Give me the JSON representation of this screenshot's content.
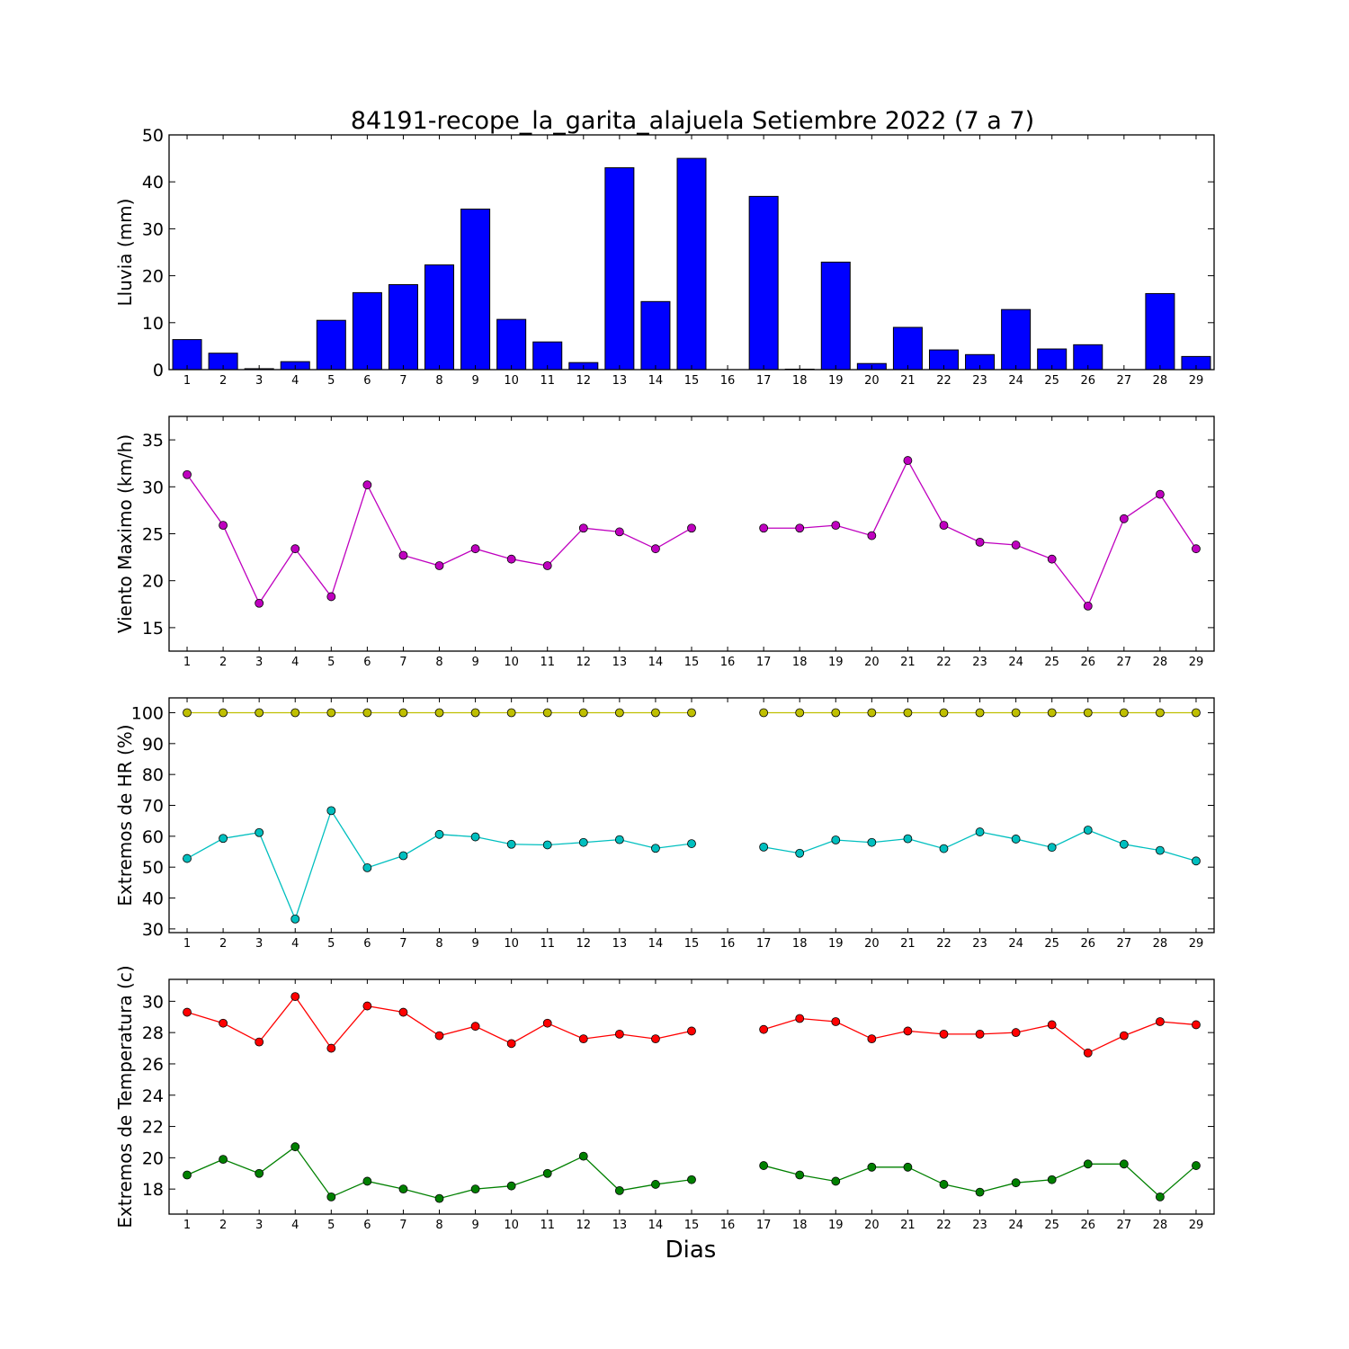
{
  "title": "84191-recope_la_garita_alajuela Setiembre 2022  (7 a 7)",
  "xlabel": "Dias",
  "colors": {
    "rain": "#0000ff",
    "wind": "#bf00bf",
    "hr_max": "#bfbf00",
    "hr_min": "#00bfbf",
    "temp_max": "#ff0000",
    "temp_min": "#008000"
  },
  "chart_data": [
    {
      "type": "bar",
      "ylabel": "Lluvia (mm)",
      "categories": [
        "1",
        "2",
        "3",
        "4",
        "5",
        "6",
        "7",
        "8",
        "9",
        "10",
        "11",
        "12",
        "13",
        "14",
        "15",
        "16",
        "17",
        "18",
        "19",
        "20",
        "21",
        "22",
        "23",
        "24",
        "25",
        "26",
        "27",
        "28",
        "29"
      ],
      "values": [
        6.4,
        3.5,
        0.2,
        1.7,
        10.5,
        16.4,
        18.1,
        22.3,
        34.2,
        10.7,
        5.9,
        1.5,
        43.0,
        14.5,
        45.0,
        null,
        36.9,
        0.1,
        22.9,
        1.3,
        9.0,
        4.2,
        3.2,
        12.8,
        4.4,
        5.3,
        null,
        16.2,
        2.8
      ],
      "ylim": [
        0,
        50
      ],
      "yticks": [
        0,
        10,
        20,
        30,
        40,
        50
      ]
    },
    {
      "type": "line",
      "ylabel": "Viento Maximo (km/h)",
      "categories": [
        "1",
        "2",
        "3",
        "4",
        "5",
        "6",
        "7",
        "8",
        "9",
        "10",
        "11",
        "12",
        "13",
        "14",
        "15",
        "16",
        "17",
        "18",
        "19",
        "20",
        "21",
        "22",
        "23",
        "24",
        "25",
        "26",
        "27",
        "28",
        "29"
      ],
      "series": [
        {
          "values": [
            31.3,
            25.9,
            17.6,
            23.4,
            18.3,
            30.2,
            22.7,
            21.6,
            23.4,
            22.3,
            21.6,
            25.6,
            25.2,
            23.4,
            25.6,
            null,
            25.6,
            25.6,
            25.9,
            24.8,
            32.8,
            25.9,
            24.1,
            23.8,
            22.3,
            17.3,
            26.6,
            29.2,
            23.4
          ]
        }
      ],
      "ylim": [
        12.5,
        37.5
      ],
      "yticks": [
        15,
        20,
        25,
        30,
        35
      ]
    },
    {
      "type": "line",
      "ylabel": "Extremos de HR (%)",
      "categories": [
        "1",
        "2",
        "3",
        "4",
        "5",
        "6",
        "7",
        "8",
        "9",
        "10",
        "11",
        "12",
        "13",
        "14",
        "15",
        "16",
        "17",
        "18",
        "19",
        "20",
        "21",
        "22",
        "23",
        "24",
        "25",
        "26",
        "27",
        "28",
        "29"
      ],
      "series": [
        {
          "values": [
            100,
            100,
            100,
            100,
            100,
            100,
            100,
            100,
            100,
            100,
            100,
            100,
            100,
            100,
            100,
            null,
            100,
            100,
            100,
            100,
            100,
            100,
            100,
            100,
            100,
            100,
            100,
            100,
            100
          ]
        },
        {
          "values": [
            52.8,
            59.3,
            61.2,
            33.2,
            68.3,
            49.8,
            53.7,
            60.6,
            59.8,
            57.4,
            57.2,
            58.0,
            58.9,
            56.1,
            57.6,
            null,
            56.5,
            54.5,
            58.8,
            58.0,
            59.2,
            56.0,
            61.4,
            59.1,
            56.4,
            62.0,
            57.4,
            55.4,
            52.0
          ]
        }
      ],
      "ylim": [
        28.8,
        104.8
      ],
      "yticks": [
        30,
        40,
        50,
        60,
        70,
        80,
        90,
        100
      ]
    },
    {
      "type": "line",
      "ylabel": "Extremos de Temperatura (c)",
      "categories": [
        "1",
        "2",
        "3",
        "4",
        "5",
        "6",
        "7",
        "8",
        "9",
        "10",
        "11",
        "12",
        "13",
        "14",
        "15",
        "16",
        "17",
        "18",
        "19",
        "20",
        "21",
        "22",
        "23",
        "24",
        "25",
        "26",
        "27",
        "28",
        "29"
      ],
      "series": [
        {
          "values": [
            29.3,
            28.6,
            27.4,
            30.3,
            27.0,
            29.7,
            29.3,
            27.8,
            28.4,
            27.3,
            28.6,
            27.6,
            27.9,
            27.6,
            28.1,
            null,
            28.2,
            28.9,
            28.7,
            27.6,
            28.1,
            27.9,
            27.9,
            28.0,
            28.5,
            26.7,
            27.8,
            28.7,
            28.5
          ]
        },
        {
          "values": [
            18.9,
            19.9,
            19.0,
            20.7,
            17.5,
            18.5,
            18.0,
            17.4,
            18.0,
            18.2,
            19.0,
            20.1,
            17.9,
            18.3,
            18.6,
            null,
            19.5,
            18.9,
            18.5,
            19.4,
            19.4,
            18.3,
            17.8,
            18.4,
            18.6,
            19.6,
            19.6,
            17.5,
            19.5
          ]
        }
      ],
      "ylim": [
        16.4,
        31.4
      ],
      "yticks": [
        18,
        20,
        22,
        24,
        26,
        28,
        30
      ]
    }
  ]
}
